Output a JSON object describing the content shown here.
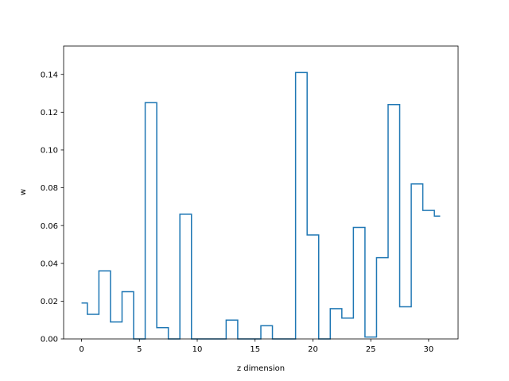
{
  "chart_data": {
    "type": "line",
    "drawstyle": "steps-mid",
    "xlabel": "z dimension",
    "ylabel": "w",
    "xlim": [
      -1.55,
      32.55
    ],
    "ylim": [
      0.0,
      0.155
    ],
    "x_ticks": [
      0,
      5,
      10,
      15,
      20,
      25,
      30
    ],
    "y_ticks": [
      0.0,
      0.02,
      0.04,
      0.06,
      0.08,
      0.1,
      0.12,
      0.14
    ],
    "x_tick_labels": [
      "0",
      "5",
      "10",
      "15",
      "20",
      "25",
      "30"
    ],
    "y_tick_labels": [
      "0.00",
      "0.02",
      "0.04",
      "0.06",
      "0.08",
      "0.10",
      "0.12",
      "0.14"
    ],
    "grid": false,
    "legend": "none",
    "series_color": "#1f77b4",
    "series": [
      {
        "x": [
          0,
          1,
          2,
          3,
          4,
          5,
          6,
          7,
          8,
          9,
          10,
          11,
          12,
          13,
          14,
          15,
          16,
          17,
          18,
          19,
          20,
          21,
          22,
          23,
          24,
          25,
          26,
          27,
          28,
          29,
          30,
          31
        ],
        "values": [
          0.019,
          0.013,
          0.036,
          0.009,
          0.025,
          0.0,
          0.125,
          0.006,
          0.0,
          0.066,
          0.0,
          0.0,
          0.0,
          0.01,
          0.0,
          0.0,
          0.007,
          0.0,
          0.0,
          0.141,
          0.055,
          0.0,
          0.016,
          0.011,
          0.059,
          0.001,
          0.043,
          0.124,
          0.017,
          0.082,
          0.068,
          0.065
        ]
      }
    ]
  }
}
